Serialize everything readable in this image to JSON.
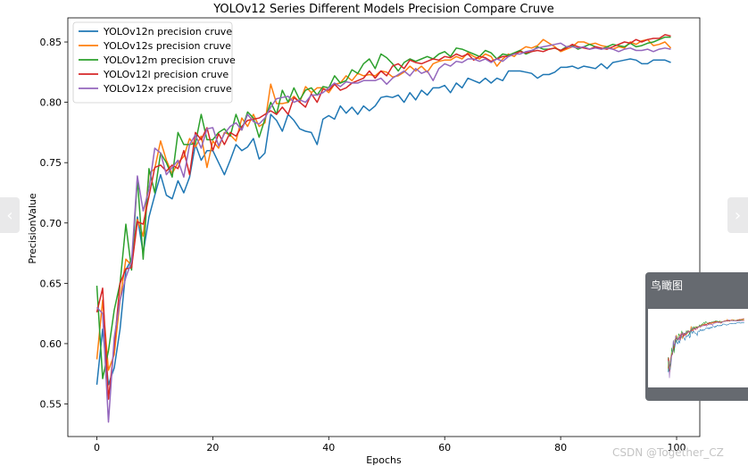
{
  "chart_data": {
    "type": "line",
    "title": "YOLOv12 Series Different Models Precision Compare Cruve",
    "xlabel": "Epochs",
    "ylabel": "PrecisionValue",
    "xlim": [
      -5,
      104
    ],
    "ylim": [
      0.523,
      0.87
    ],
    "xticks": [
      0,
      20,
      40,
      60,
      80,
      100
    ],
    "yticks": [
      0.55,
      0.6,
      0.65,
      0.7,
      0.75,
      0.8,
      0.85
    ],
    "ytick_labels": [
      "0.55",
      "0.60",
      "0.65",
      "0.70",
      "0.75",
      "0.80",
      "0.85"
    ],
    "legend_position": "top-left",
    "grid": false,
    "x": [
      0,
      1,
      2,
      3,
      4,
      5,
      6,
      7,
      8,
      9,
      10,
      11,
      12,
      13,
      14,
      15,
      16,
      17,
      18,
      19,
      20,
      21,
      22,
      23,
      24,
      25,
      26,
      27,
      28,
      29,
      30,
      31,
      32,
      33,
      34,
      35,
      36,
      37,
      38,
      39,
      40,
      41,
      42,
      43,
      44,
      45,
      46,
      47,
      48,
      49,
      50,
      51,
      52,
      53,
      54,
      55,
      56,
      57,
      58,
      59,
      60,
      61,
      62,
      63,
      64,
      65,
      66,
      67,
      68,
      69,
      70,
      71,
      72,
      73,
      74,
      75,
      76,
      77,
      78,
      79,
      80,
      81,
      82,
      83,
      84,
      85,
      86,
      87,
      88,
      89,
      90,
      91,
      92,
      93,
      94,
      95,
      96,
      97,
      98,
      99
    ],
    "series": [
      {
        "name": "YOLOv12n precision cruve",
        "color": "#1f77b4",
        "values": [
          0.566,
          0.612,
          0.566,
          0.58,
          0.612,
          0.661,
          0.67,
          0.705,
          0.675,
          0.705,
          0.723,
          0.74,
          0.723,
          0.72,
          0.735,
          0.725,
          0.738,
          0.765,
          0.752,
          0.76,
          0.76,
          0.75,
          0.74,
          0.752,
          0.765,
          0.76,
          0.763,
          0.77,
          0.753,
          0.758,
          0.79,
          0.785,
          0.776,
          0.79,
          0.785,
          0.778,
          0.776,
          0.775,
          0.765,
          0.786,
          0.789,
          0.786,
          0.797,
          0.791,
          0.796,
          0.79,
          0.797,
          0.793,
          0.797,
          0.804,
          0.805,
          0.804,
          0.806,
          0.8,
          0.808,
          0.802,
          0.81,
          0.806,
          0.812,
          0.812,
          0.814,
          0.808,
          0.816,
          0.812,
          0.82,
          0.818,
          0.816,
          0.82,
          0.816,
          0.82,
          0.818,
          0.826,
          0.826,
          0.826,
          0.825,
          0.824,
          0.82,
          0.823,
          0.823,
          0.825,
          0.829,
          0.829,
          0.83,
          0.828,
          0.83,
          0.829,
          0.828,
          0.832,
          0.828,
          0.833,
          0.834,
          0.835,
          0.836,
          0.835,
          0.832,
          0.832,
          0.835,
          0.835,
          0.835,
          0.833
        ]
      },
      {
        "name": "YOLOv12s precision cruve",
        "color": "#ff7f0e",
        "values": [
          0.587,
          0.636,
          0.578,
          0.591,
          0.636,
          0.67,
          0.665,
          0.703,
          0.689,
          0.741,
          0.745,
          0.768,
          0.752,
          0.741,
          0.75,
          0.755,
          0.77,
          0.763,
          0.772,
          0.746,
          0.768,
          0.762,
          0.775,
          0.773,
          0.768,
          0.787,
          0.78,
          0.79,
          0.78,
          0.783,
          0.815,
          0.799,
          0.799,
          0.8,
          0.805,
          0.8,
          0.813,
          0.808,
          0.812,
          0.812,
          0.808,
          0.815,
          0.816,
          0.822,
          0.818,
          0.824,
          0.822,
          0.823,
          0.822,
          0.826,
          0.825,
          0.821,
          0.822,
          0.825,
          0.83,
          0.826,
          0.83,
          0.825,
          0.832,
          0.834,
          0.835,
          0.835,
          0.838,
          0.836,
          0.841,
          0.838,
          0.836,
          0.84,
          0.838,
          0.83,
          0.836,
          0.84,
          0.838,
          0.843,
          0.846,
          0.845,
          0.847,
          0.852,
          0.849,
          0.846,
          0.842,
          0.844,
          0.846,
          0.85,
          0.85,
          0.848,
          0.849,
          0.847,
          0.846,
          0.844,
          0.846,
          0.845,
          0.85,
          0.848,
          0.851,
          0.852,
          0.847,
          0.848,
          0.85,
          0.845
        ]
      },
      {
        "name": "YOLOv12m precision cruve",
        "color": "#2ca02c",
        "values": [
          0.648,
          0.571,
          0.594,
          0.628,
          0.65,
          0.699,
          0.661,
          0.737,
          0.67,
          0.745,
          0.725,
          0.758,
          0.75,
          0.738,
          0.775,
          0.765,
          0.765,
          0.766,
          0.79,
          0.769,
          0.769,
          0.775,
          0.778,
          0.772,
          0.79,
          0.777,
          0.792,
          0.787,
          0.771,
          0.786,
          0.8,
          0.79,
          0.81,
          0.8,
          0.812,
          0.802,
          0.81,
          0.812,
          0.806,
          0.813,
          0.812,
          0.822,
          0.816,
          0.818,
          0.827,
          0.824,
          0.832,
          0.836,
          0.828,
          0.84,
          0.837,
          0.832,
          0.826,
          0.833,
          0.836,
          0.834,
          0.836,
          0.838,
          0.836,
          0.84,
          0.842,
          0.838,
          0.845,
          0.844,
          0.842,
          0.84,
          0.838,
          0.843,
          0.841,
          0.836,
          0.84,
          0.839,
          0.841,
          0.843,
          0.84,
          0.842,
          0.846,
          0.844,
          0.844,
          0.845,
          0.843,
          0.846,
          0.847,
          0.844,
          0.846,
          0.848,
          0.846,
          0.844,
          0.846,
          0.848,
          0.847,
          0.846,
          0.849,
          0.846,
          0.847,
          0.849,
          0.85,
          0.852,
          0.854,
          0.854
        ]
      },
      {
        "name": "YOLOv12l precision cruve",
        "color": "#d62728",
        "values": [
          0.626,
          0.646,
          0.554,
          0.598,
          0.65,
          0.662,
          0.663,
          0.701,
          0.699,
          0.722,
          0.746,
          0.748,
          0.743,
          0.748,
          0.745,
          0.76,
          0.74,
          0.775,
          0.769,
          0.779,
          0.76,
          0.774,
          0.765,
          0.775,
          0.772,
          0.78,
          0.785,
          0.786,
          0.787,
          0.79,
          0.793,
          0.79,
          0.796,
          0.79,
          0.804,
          0.8,
          0.796,
          0.807,
          0.8,
          0.811,
          0.81,
          0.815,
          0.81,
          0.812,
          0.816,
          0.818,
          0.82,
          0.826,
          0.82,
          0.826,
          0.822,
          0.83,
          0.832,
          0.828,
          0.835,
          0.833,
          0.832,
          0.834,
          0.836,
          0.835,
          0.838,
          0.837,
          0.84,
          0.838,
          0.84,
          0.835,
          0.838,
          0.837,
          0.834,
          0.836,
          0.838,
          0.838,
          0.84,
          0.842,
          0.841,
          0.842,
          0.843,
          0.842,
          0.844,
          0.845,
          0.843,
          0.845,
          0.848,
          0.846,
          0.845,
          0.844,
          0.846,
          0.845,
          0.844,
          0.846,
          0.848,
          0.85,
          0.849,
          0.852,
          0.85,
          0.852,
          0.853,
          0.853,
          0.856,
          0.855
        ]
      },
      {
        "name": "YOLOv12x precision cruve",
        "color": "#9467bd",
        "values": [
          0.63,
          0.625,
          0.535,
          0.605,
          0.636,
          0.655,
          0.668,
          0.739,
          0.71,
          0.728,
          0.762,
          0.758,
          0.74,
          0.746,
          0.752,
          0.738,
          0.765,
          0.773,
          0.762,
          0.778,
          0.779,
          0.764,
          0.774,
          0.78,
          0.783,
          0.777,
          0.79,
          0.784,
          0.782,
          0.787,
          0.796,
          0.803,
          0.804,
          0.805,
          0.8,
          0.802,
          0.8,
          0.806,
          0.806,
          0.808,
          0.812,
          0.816,
          0.813,
          0.817,
          0.816,
          0.816,
          0.818,
          0.818,
          0.818,
          0.82,
          0.815,
          0.82,
          0.823,
          0.826,
          0.822,
          0.828,
          0.824,
          0.826,
          0.818,
          0.828,
          0.832,
          0.83,
          0.834,
          0.833,
          0.836,
          0.836,
          0.834,
          0.836,
          0.833,
          0.836,
          0.834,
          0.838,
          0.84,
          0.84,
          0.842,
          0.843,
          0.845,
          0.846,
          0.847,
          0.848,
          0.849,
          0.846,
          0.846,
          0.845,
          0.846,
          0.844,
          0.845,
          0.844,
          0.845,
          0.844,
          0.842,
          0.844,
          0.845,
          0.843,
          0.843,
          0.844,
          0.842,
          0.844,
          0.845,
          0.844
        ]
      }
    ]
  },
  "overlay": {
    "overview_title": "鸟瞰图",
    "watermark": "CSDN @Together_CZ",
    "nav_prev_icon": "chevron-left-icon",
    "nav_next_icon": "chevron-right-icon"
  }
}
